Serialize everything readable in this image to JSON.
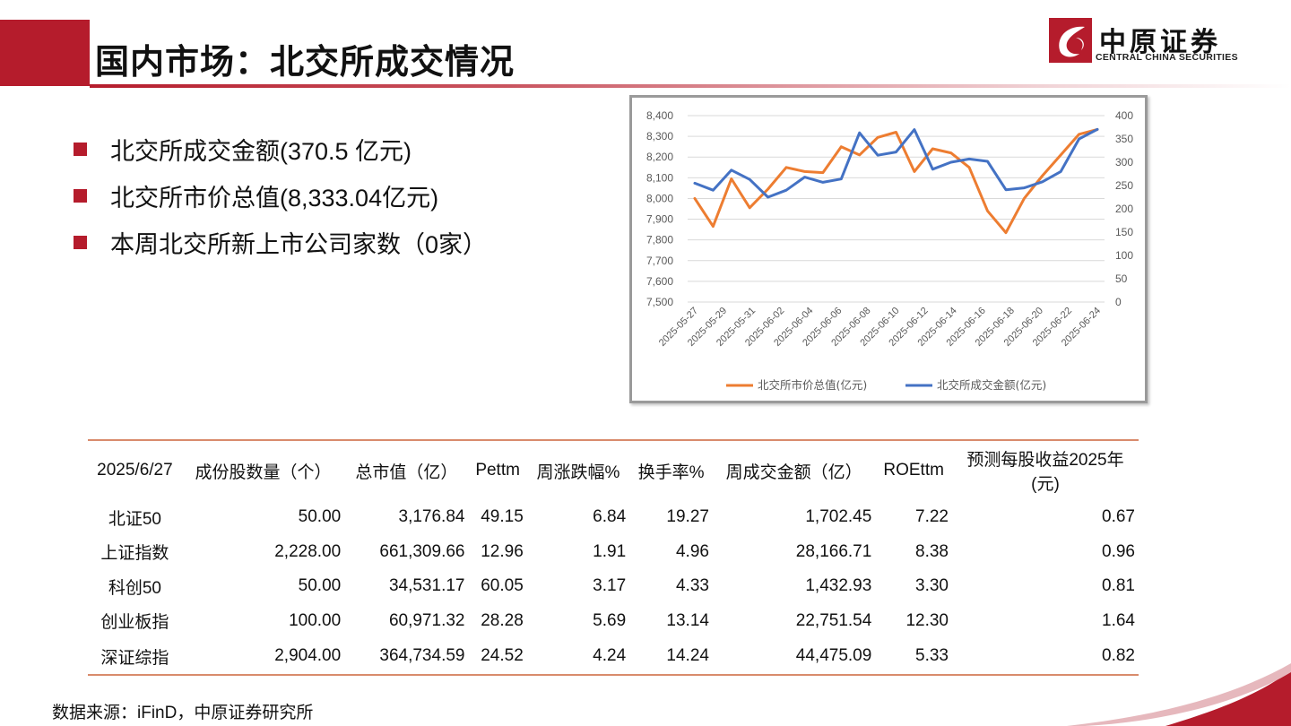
{
  "title": "国内市场：北交所成交情况",
  "logo": {
    "name": "中原证券",
    "subtitle": "CENTRAL CHINA SECURITIES"
  },
  "bullets": [
    "北交所成交金额(370.5 亿元)",
    "北交所市价总值(8,333.04亿元)",
    "本周北交所新上市公司家数（0家）"
  ],
  "chart_data": {
    "type": "line",
    "x": [
      "2025-05-27",
      "2025-05-28",
      "2025-05-29",
      "2025-05-30",
      "2025-06-03",
      "2025-06-04",
      "2025-06-05",
      "2025-06-06",
      "2025-06-09",
      "2025-06-10",
      "2025-06-11",
      "2025-06-12",
      "2025-06-13",
      "2025-06-16",
      "2025-06-17",
      "2025-06-18",
      "2025-06-19",
      "2025-06-20",
      "2025-06-23",
      "2025-06-24",
      "2025-06-25",
      "2025-06-26",
      "2025-06-27"
    ],
    "x_tick_labels": [
      "2025-05-27",
      "2025-05-29",
      "2025-05-31",
      "2025-06-02",
      "2025-06-04",
      "2025-06-06",
      "2025-06-08",
      "2025-06-10",
      "2025-06-12",
      "2025-06-14",
      "2025-06-16",
      "2025-06-18",
      "2025-06-20",
      "2025-06-22",
      "2025-06-24"
    ],
    "series": [
      {
        "name": "北交所市价总值(亿元)",
        "axis": "left",
        "color": "#ed7d31",
        "values": [
          8000,
          7865,
          8095,
          7955,
          8045,
          8150,
          8130,
          8125,
          8250,
          8210,
          8295,
          8320,
          8130,
          8240,
          8220,
          8150,
          7940,
          7835,
          8000,
          8110,
          8210,
          8310,
          8333.04
        ]
      },
      {
        "name": "北交所成交金额(亿元)",
        "axis": "right",
        "color": "#4472c4",
        "values": [
          255,
          240,
          283,
          263,
          225,
          240,
          268,
          257,
          264,
          363,
          315,
          322,
          370,
          285,
          300,
          307,
          302,
          241,
          245,
          258,
          280,
          350,
          370.5
        ]
      }
    ],
    "y_left": {
      "min": 7500,
      "max": 8400,
      "ticks": [
        "7,500",
        "7,600",
        "7,700",
        "7,800",
        "7,900",
        "8,000",
        "8,100",
        "8,200",
        "8,300",
        "8,400"
      ]
    },
    "y_right": {
      "min": 0,
      "max": 400,
      "ticks": [
        "0",
        "50",
        "100",
        "150",
        "200",
        "250",
        "300",
        "350",
        "400"
      ]
    },
    "grid": true,
    "legend": "bottom"
  },
  "table": {
    "headers": [
      "2025/6/27",
      "成份股数量（个）",
      "总市值（亿）",
      "Pettm",
      "周涨跌幅%",
      "换手率%",
      "周成交金额（亿）",
      "ROEttm",
      "预测每股收益2025年(元)"
    ],
    "rows": [
      [
        "北证50",
        "50.00",
        "3,176.84",
        "49.15",
        "6.84",
        "19.27",
        "1,702.45",
        "7.22",
        "0.67"
      ],
      [
        "上证指数",
        "2,228.00",
        "661,309.66",
        "12.96",
        "1.91",
        "4.96",
        "28,166.71",
        "8.38",
        "0.96"
      ],
      [
        "科创50",
        "50.00",
        "34,531.17",
        "60.05",
        "3.17",
        "4.33",
        "1,432.93",
        "3.30",
        "0.81"
      ],
      [
        "创业板指",
        "100.00",
        "60,971.32",
        "28.28",
        "5.69",
        "13.14",
        "22,751.54",
        "12.30",
        "1.64"
      ],
      [
        "深证综指",
        "2,904.00",
        "364,734.59",
        "24.52",
        "4.24",
        "14.24",
        "44,475.09",
        "5.33",
        "0.82"
      ]
    ]
  },
  "source": "数据来源：iFinD，中原证券研究所",
  "colors": {
    "accent": "#b51c2c",
    "table_rule": "#d98b6c"
  }
}
